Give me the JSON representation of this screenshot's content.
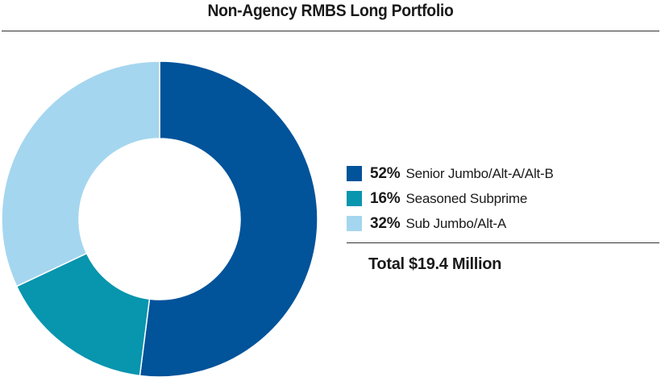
{
  "chart_data": {
    "type": "pie",
    "title": "Non-Agency RMBS Long Portfolio",
    "donut": true,
    "slices": [
      {
        "percent_label": "52%",
        "label": "Senior Jumbo/Alt-A/Alt-B",
        "value": 52,
        "color": "#01539A"
      },
      {
        "percent_label": "16%",
        "label": "Seasoned Subprime",
        "value": 16,
        "color": "#0895AE"
      },
      {
        "percent_label": "32%",
        "label": "Sub Jumbo/Alt-A",
        "value": 32,
        "color": "#A5D6EF"
      }
    ],
    "total": "Total $19.4 Million",
    "legend_position": "right"
  }
}
